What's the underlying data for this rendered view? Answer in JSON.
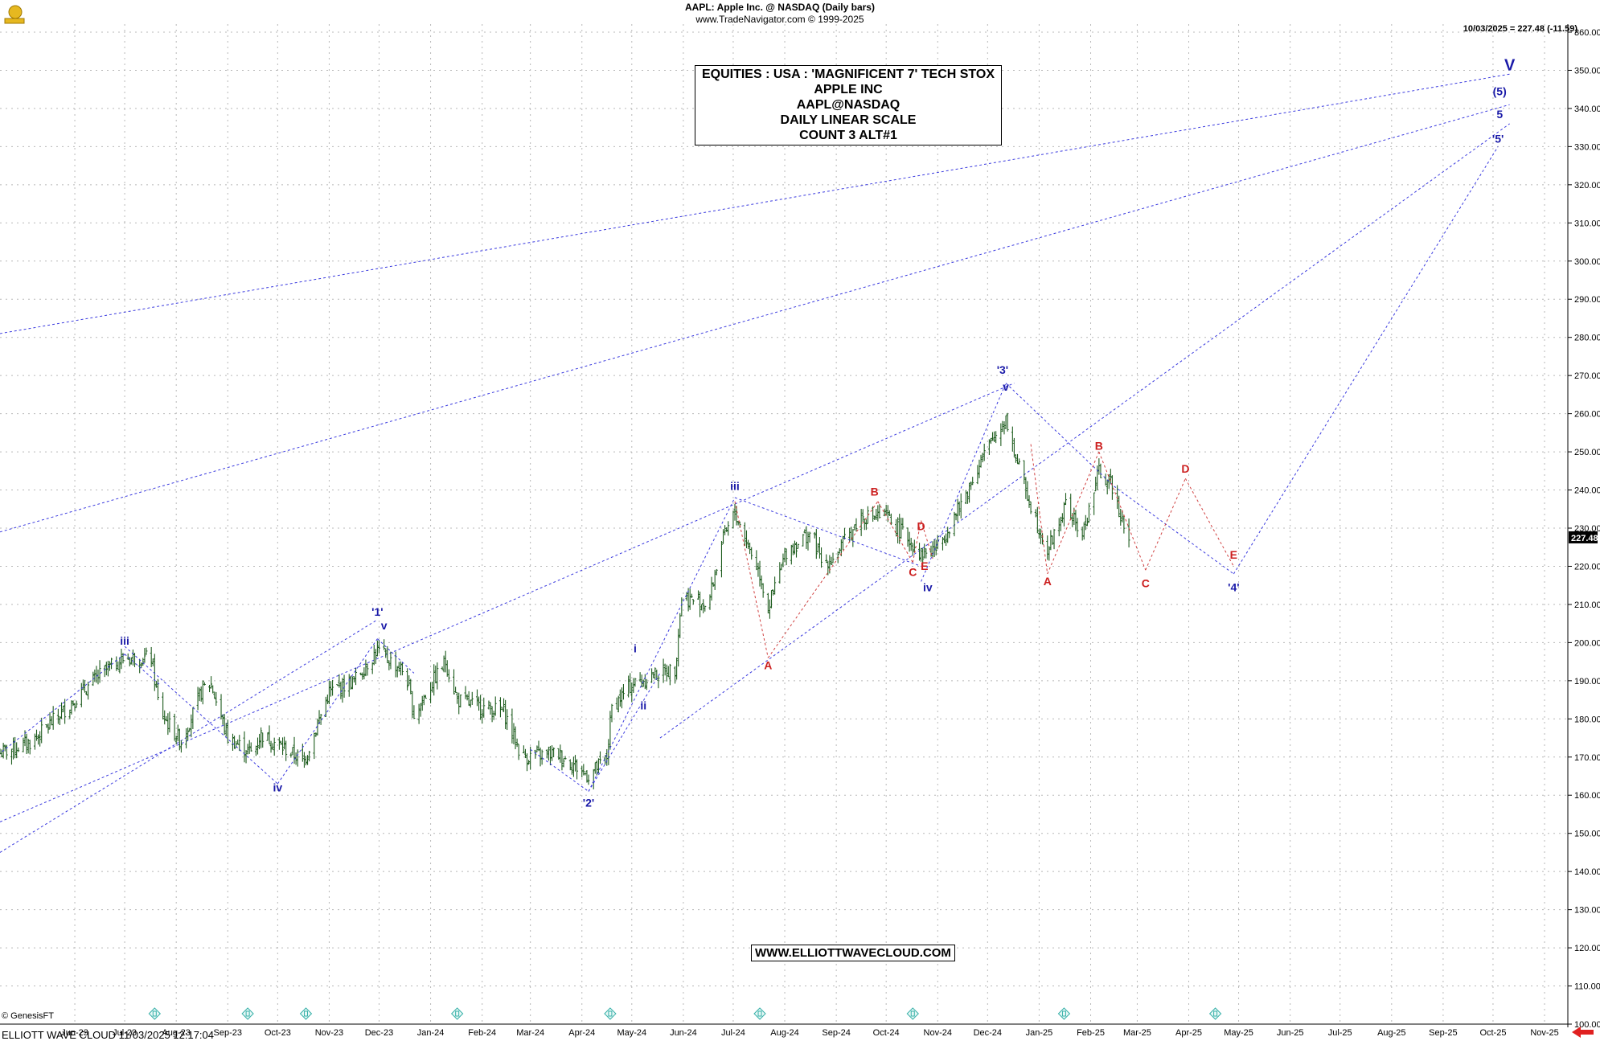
{
  "header": {
    "line1": "AAPL:  Apple Inc. @ NASDAQ  (Daily bars)",
    "line2": "www.TradeNavigator.com © 1999-2025"
  },
  "quote": "10/03/2025 = 227.48 (-11.59)",
  "title_lines": [
    "EQUITIES : USA : 'MAGNIFICENT 7' TECH STOX",
    "APPLE INC",
    "AAPL@NASDAQ",
    "DAILY LINEAR SCALE",
    "COUNT 3 ALT#1"
  ],
  "website": "WWW.ELLIOTTWAVECLOUD.COM",
  "footer": "ELLIOTT WAVE CLOUD   11/03/2025 12:17:04",
  "genesis": "© GenesisFT",
  "last_price_tag": "227.48",
  "colors": {
    "grid": "#b8b8b8",
    "bar": "#1e5c1e",
    "blue_label": "#1a1aa8",
    "red_label": "#cc1f1f",
    "blue_line": "#3a3adf",
    "red_line": "#d04040",
    "marker": "#36b0a8",
    "arrow": "#e02020"
  },
  "chart_data": {
    "type": "line",
    "ylim": [
      100,
      360
    ],
    "yticks": [
      "100.00",
      "110.00",
      "120.00",
      "130.00",
      "140.00",
      "150.00",
      "160.00",
      "170.00",
      "180.00",
      "190.00",
      "200.00",
      "210.00",
      "220.00",
      "230.00",
      "240.00",
      "250.00",
      "260.00",
      "270.00",
      "280.00",
      "290.00",
      "300.00",
      "310.00",
      "320.00",
      "330.00",
      "340.00",
      "350.00",
      "360.00"
    ],
    "x_tick_labels": [
      "Jun-23",
      "Jul-23",
      "Aug-23",
      "Sep-23",
      "Oct-23",
      "Nov-23",
      "Dec-23",
      "Jan-24",
      "Feb-24",
      "Mar-24",
      "Apr-24",
      "May-24",
      "Jun-24",
      "Jul-24",
      "Aug-24",
      "Sep-24",
      "Oct-24",
      "Nov-24",
      "Dec-24",
      "Jan-25",
      "Feb-25",
      "Mar-25",
      "Apr-25",
      "May-25",
      "Jun-25",
      "Jul-25",
      "Aug-25",
      "Sep-25",
      "Oct-25",
      "Nov-25"
    ],
    "price_series": [
      [
        "2023-05-01",
        171
      ],
      [
        "2023-05-20",
        174
      ],
      [
        "2023-06-15",
        185
      ],
      [
        "2023-07-01",
        192
      ],
      [
        "2023-07-15",
        196
      ],
      [
        "2023-07-31",
        196
      ],
      [
        "2023-08-05",
        182
      ],
      [
        "2023-08-18",
        174
      ],
      [
        "2023-08-31",
        188
      ],
      [
        "2023-09-05",
        189
      ],
      [
        "2023-09-15",
        175
      ],
      [
        "2023-09-30",
        171
      ],
      [
        "2023-10-05",
        176
      ],
      [
        "2023-10-20",
        172
      ],
      [
        "2023-10-31",
        169
      ],
      [
        "2023-11-15",
        187
      ],
      [
        "2023-11-30",
        190
      ],
      [
        "2023-12-14",
        198
      ],
      [
        "2023-12-31",
        192
      ],
      [
        "2024-01-05",
        181
      ],
      [
        "2024-01-18",
        191
      ],
      [
        "2024-01-24",
        195
      ],
      [
        "2024-01-31",
        185
      ],
      [
        "2024-02-15",
        183
      ],
      [
        "2024-02-28",
        182
      ],
      [
        "2024-03-10",
        170
      ],
      [
        "2024-03-31",
        171
      ],
      [
        "2024-04-10",
        168
      ],
      [
        "2024-04-19",
        165
      ],
      [
        "2024-04-30",
        170
      ],
      [
        "2024-05-03",
        183
      ],
      [
        "2024-05-15",
        189
      ],
      [
        "2024-05-31",
        192
      ],
      [
        "2024-06-10",
        193
      ],
      [
        "2024-06-14",
        212
      ],
      [
        "2024-06-30",
        210
      ],
      [
        "2024-07-08",
        226
      ],
      [
        "2024-07-16",
        234
      ],
      [
        "2024-07-31",
        218
      ],
      [
        "2024-08-05",
        209
      ],
      [
        "2024-08-16",
        224
      ],
      [
        "2024-08-31",
        229
      ],
      [
        "2024-09-06",
        221
      ],
      [
        "2024-09-13",
        222
      ],
      [
        "2024-09-30",
        233
      ],
      [
        "2024-10-15",
        233
      ],
      [
        "2024-10-31",
        226
      ],
      [
        "2024-11-05",
        223
      ],
      [
        "2024-11-15",
        225
      ],
      [
        "2024-11-30",
        237
      ],
      [
        "2024-12-10",
        247
      ],
      [
        "2024-12-26",
        259
      ],
      [
        "2024-12-31",
        250
      ],
      [
        "2025-01-10",
        236
      ],
      [
        "2025-01-20",
        224
      ],
      [
        "2025-01-31",
        236
      ],
      [
        "2025-02-10",
        228
      ],
      [
        "2025-02-20",
        245
      ],
      [
        "2025-02-28",
        241
      ],
      [
        "2025-03-10",
        227.48
      ]
    ],
    "wave_lines_blue": [
      [
        [
          "2023-07-15",
          197
        ],
        [
          "2023-08-05",
          189
        ]
      ],
      [
        [
          "2023-07-15",
          197
        ],
        [
          "2023-05-01",
          171
        ]
      ],
      [
        [
          "2023-10-15",
          163
        ],
        [
          "2023-12-14",
          201
        ]
      ],
      [
        [
          "2023-07-15",
          199
        ],
        [
          "2023-10-15",
          163
        ]
      ],
      [
        [
          "2023-12-14",
          201
        ],
        [
          "2024-01-05",
          192
        ]
      ],
      [
        [
          "2024-04-19",
          161
        ],
        [
          "2024-06-01",
          192
        ]
      ],
      [
        [
          "2024-03-15",
          172
        ],
        [
          "2024-04-19",
          161
        ]
      ],
      [
        [
          "2024-04-19",
          161
        ],
        [
          "2024-07-16",
          238
        ]
      ],
      [
        [
          "2024-07-16",
          238
        ],
        [
          "2024-11-05",
          220
        ]
      ],
      [
        [
          "2024-11-05",
          216
        ],
        [
          "2024-12-26",
          268
        ]
      ],
      [
        [
          "2024-12-26",
          268
        ],
        [
          "2025-03-01",
          241
        ]
      ],
      [
        [
          "2025-03-01",
          241
        ],
        [
          "2025-05-12",
          218
        ]
      ],
      [
        [
          "2025-05-12",
          218
        ],
        [
          "2025-10-18",
          330
        ]
      ]
    ],
    "channel_lines": [
      [
        [
          "2023-05-01",
          281
        ],
        [
          "2025-10-25",
          349
        ]
      ],
      [
        [
          "2023-05-01",
          229
        ],
        [
          "2025-10-25",
          341
        ]
      ],
      [
        [
          "2023-05-01",
          153
        ],
        [
          "2024-12-31",
          268
        ]
      ],
      [
        [
          "2023-05-01",
          145
        ],
        [
          "2023-12-14",
          206
        ]
      ],
      [
        [
          "2024-06-01",
          175
        ],
        [
          "2025-10-25",
          336
        ]
      ]
    ],
    "wave_lines_red": [
      [
        [
          "2024-07-16",
          237
        ],
        [
          "2024-08-05",
          196
        ]
      ],
      [
        [
          "2024-08-05",
          196
        ],
        [
          "2024-10-10",
          237
        ]
      ],
      [
        [
          "2024-10-10",
          237
        ],
        [
          "2024-10-31",
          221
        ]
      ],
      [
        [
          "2024-10-31",
          221
        ],
        [
          "2024-11-05",
          232
        ]
      ],
      [
        [
          "2024-11-05",
          232
        ],
        [
          "2024-11-12",
          222
        ]
      ],
      [
        [
          "2025-01-10",
          252
        ],
        [
          "2025-01-20",
          218
        ]
      ],
      [
        [
          "2025-01-20",
          218
        ],
        [
          "2025-02-20",
          250
        ]
      ],
      [
        [
          "2025-02-20",
          250
        ],
        [
          "2025-03-20",
          219
        ]
      ],
      [
        [
          "2025-03-20",
          219
        ],
        [
          "2025-04-13",
          243
        ]
      ],
      [
        [
          "2025-04-13",
          243
        ],
        [
          "2025-05-12",
          220
        ]
      ]
    ],
    "wave_labels": [
      {
        "text": "iii",
        "color": "blue",
        "x": "2023-07-15",
        "y": 199.5
      },
      {
        "text": "iv",
        "color": "blue",
        "x": "2023-10-15",
        "y": 161
      },
      {
        "text": "'1'",
        "color": "blue",
        "x": "2023-12-14",
        "y": 207
      },
      {
        "text": "v",
        "color": "blue",
        "x": "2023-12-18",
        "y": 203.5
      },
      {
        "text": "'2'",
        "color": "blue",
        "x": "2024-04-19",
        "y": 157
      },
      {
        "text": "i",
        "color": "blue",
        "x": "2024-05-17",
        "y": 197.5
      },
      {
        "text": "ii",
        "color": "blue",
        "x": "2024-05-22",
        "y": 182.5
      },
      {
        "text": "iii",
        "color": "blue",
        "x": "2024-07-16",
        "y": 240
      },
      {
        "text": "A",
        "color": "red",
        "x": "2024-08-05",
        "y": 193
      },
      {
        "text": "B",
        "color": "red",
        "x": "2024-10-08",
        "y": 238.5
      },
      {
        "text": "C",
        "color": "red",
        "x": "2024-10-31",
        "y": 217.5
      },
      {
        "text": "D",
        "color": "red",
        "x": "2024-11-05",
        "y": 229.5
      },
      {
        "text": "E",
        "color": "red",
        "x": "2024-11-07",
        "y": 219
      },
      {
        "text": "iv",
        "color": "blue",
        "x": "2024-11-09",
        "y": 213.5
      },
      {
        "text": "'3'",
        "color": "blue",
        "x": "2024-12-24",
        "y": 270.5
      },
      {
        "text": "v",
        "color": "blue",
        "x": "2024-12-26",
        "y": 266
      },
      {
        "text": "A",
        "color": "red",
        "x": "2025-01-20",
        "y": 215
      },
      {
        "text": "B",
        "color": "red",
        "x": "2025-02-20",
        "y": 250.5
      },
      {
        "text": "C",
        "color": "red",
        "x": "2025-03-20",
        "y": 214.5
      },
      {
        "text": "D",
        "color": "red",
        "x": "2025-04-13",
        "y": 244.5
      },
      {
        "text": "E",
        "color": "red",
        "x": "2025-05-12",
        "y": 222
      },
      {
        "text": "'4'",
        "color": "blue",
        "x": "2025-05-12",
        "y": 213.5
      },
      {
        "text": "'5'",
        "color": "blue",
        "x": "2025-10-18",
        "y": 331
      },
      {
        "text": "5",
        "color": "blue",
        "x": "2025-10-19",
        "y": 337.5
      },
      {
        "text": "(5)",
        "color": "blue",
        "x": "2025-10-19",
        "y": 343.5
      },
      {
        "text": "V",
        "color": "blue",
        "x": "2025-10-25",
        "y": 350
      }
    ],
    "event_markers": [
      "2023-08-02",
      "2023-09-27",
      "2023-11-01",
      "2024-01-31",
      "2024-05-02",
      "2024-07-31",
      "2024-10-31",
      "2025-01-30",
      "2025-05-01"
    ]
  }
}
